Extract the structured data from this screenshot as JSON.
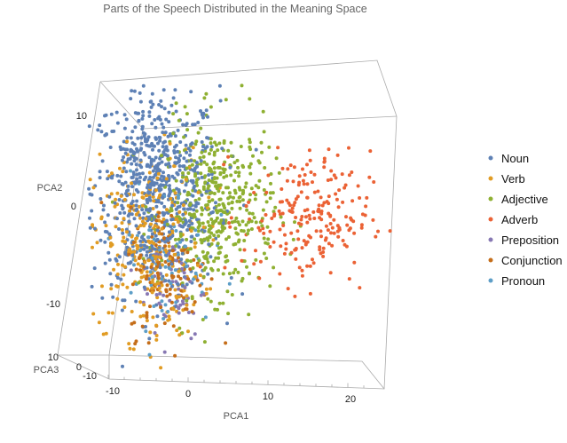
{
  "chart_data": {
    "type": "scatter",
    "title": "Parts of the Speech Distributed in the Meaning Space",
    "xlabel": "PCA1",
    "ylabel": "PCA2",
    "zlabel": "PCA3",
    "xlim": [
      -11,
      24
    ],
    "ylim": [
      -16,
      13
    ],
    "zlim": [
      -12,
      10
    ],
    "x_ticks": [
      "-10",
      "0",
      "10",
      "20"
    ],
    "y_ticks": [
      "10",
      "0",
      "-10"
    ],
    "z_ticks": [
      "10",
      "0",
      "-10"
    ],
    "legend_position": "right",
    "series": [
      {
        "name": "Noun",
        "color": "#5E81B5",
        "count": 700,
        "mean": [
          -4.1,
          1.6
        ],
        "sd": [
          4.0,
          5.5
        ]
      },
      {
        "name": "Verb",
        "color": "#E19C24",
        "count": 300,
        "mean": [
          -5.2,
          -4.1
        ],
        "sd": [
          3.5,
          5.0
        ]
      },
      {
        "name": "Adjective",
        "color": "#8FB032",
        "count": 450,
        "mean": [
          3.7,
          -0.3
        ],
        "sd": [
          3.5,
          4.5
        ]
      },
      {
        "name": "Adverb",
        "color": "#EB6235",
        "count": 220,
        "mean": [
          14.8,
          -1.2
        ],
        "sd": [
          4.0,
          3.5
        ]
      },
      {
        "name": "Preposition",
        "color": "#8778B3",
        "count": 60,
        "mean": [
          -1.9,
          -8.4
        ],
        "sd": [
          2.0,
          3.0
        ]
      },
      {
        "name": "Conjunction",
        "color": "#C56E1A",
        "count": 120,
        "mean": [
          -2.4,
          -7.0
        ],
        "sd": [
          2.5,
          3.5
        ]
      },
      {
        "name": "Pronoun",
        "color": "#5D9EC7",
        "count": 80,
        "mean": [
          -3.0,
          -5.0
        ],
        "sd": [
          3.0,
          4.0
        ]
      }
    ]
  }
}
